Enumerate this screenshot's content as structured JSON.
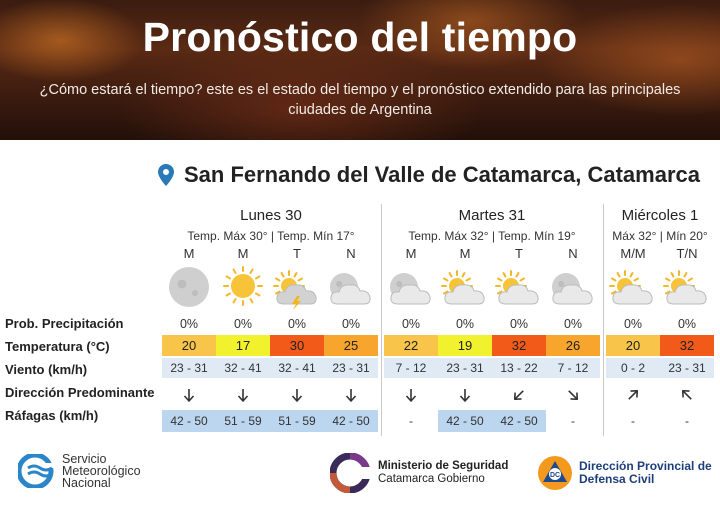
{
  "header": {
    "title": "Pronóstico del tiempo",
    "subtitle": "¿Cómo estará el tiempo? este es el estado del tiempo y el pronóstico extendido para las principales ciudades de Argentina"
  },
  "location": {
    "icon": "map-pin-icon",
    "name": "San Fernando del Valle de Catamarca, Catamarca"
  },
  "days": [
    {
      "name": "Lunes 30",
      "temps": "Temp. Máx 30° | Temp. Mín 17°"
    },
    {
      "name": "Martes 31",
      "temps": "Temp. Máx 32° | Temp. Mín 19°"
    },
    {
      "name": "Miércoles 1",
      "temps": "Máx 32° | Mín 20°"
    }
  ],
  "row_labels": {
    "precip": "Prob. Precipitación",
    "temp": "Temperatura (°C)",
    "wind": "Viento (km/h)",
    "direction": "Dirección Predominante",
    "gusts": "Ráfagas (km/h)"
  },
  "periods": [
    {
      "label": "M",
      "icon": "moon-icon",
      "precip": "0%",
      "temp": "20",
      "temp_color": "#f8c54a",
      "wind": "23 - 31",
      "direction": "S",
      "gusts": "42 - 50"
    },
    {
      "label": "M",
      "icon": "sun-icon",
      "precip": "0%",
      "temp": "17",
      "temp_color": "#f1f12d",
      "wind": "32 - 41",
      "direction": "S",
      "gusts": "51 - 59"
    },
    {
      "label": "T",
      "icon": "sun-storm-cloud-icon",
      "precip": "0%",
      "temp": "30",
      "temp_color": "#f25a1a",
      "wind": "32 - 41",
      "direction": "S",
      "gusts": "51 - 59"
    },
    {
      "label": "N",
      "icon": "moon-cloud-icon",
      "precip": "0%",
      "temp": "25",
      "temp_color": "#f7a52c",
      "wind": "23 - 31",
      "direction": "S",
      "gusts": "42 - 50"
    },
    {
      "label": "M",
      "icon": "moon-cloud-icon",
      "precip": "0%",
      "temp": "22",
      "temp_color": "#f8c54a",
      "wind": "7 - 12",
      "direction": "S",
      "gusts": "-"
    },
    {
      "label": "M",
      "icon": "sun-cloud-icon",
      "precip": "0%",
      "temp": "19",
      "temp_color": "#f1f12d",
      "wind": "23 - 31",
      "direction": "S",
      "gusts": "42 - 50"
    },
    {
      "label": "T",
      "icon": "sun-cloud-icon",
      "precip": "0%",
      "temp": "32",
      "temp_color": "#f25a1a",
      "wind": "13 - 22",
      "direction": "SW",
      "gusts": "42 - 50"
    },
    {
      "label": "N",
      "icon": "moon-cloud-icon",
      "precip": "0%",
      "temp": "26",
      "temp_color": "#f7a52c",
      "wind": "7 - 12",
      "direction": "SE",
      "gusts": "-"
    },
    {
      "label": "M/M",
      "icon": "sun-cloud-icon",
      "precip": "0%",
      "temp": "20",
      "temp_color": "#f8c54a",
      "wind": "0 - 2",
      "direction": "NE",
      "gusts": "-"
    },
    {
      "label": "T/N",
      "icon": "sun-cloud-icon",
      "precip": "0%",
      "temp": "32",
      "temp_color": "#f25a1a",
      "wind": "23 - 31",
      "direction": "NW",
      "gusts": "-"
    }
  ],
  "footer": {
    "smn": {
      "line1": "Servicio",
      "line2": "Meteorológico",
      "line3": "Nacional"
    },
    "ministerio": {
      "line1": "Ministerio de Seguridad",
      "line2": "Catamarca Gobierno"
    },
    "defensa": {
      "line1": "Dirección Provincial de",
      "line2": "Defensa Civil",
      "badge": "DC"
    }
  }
}
